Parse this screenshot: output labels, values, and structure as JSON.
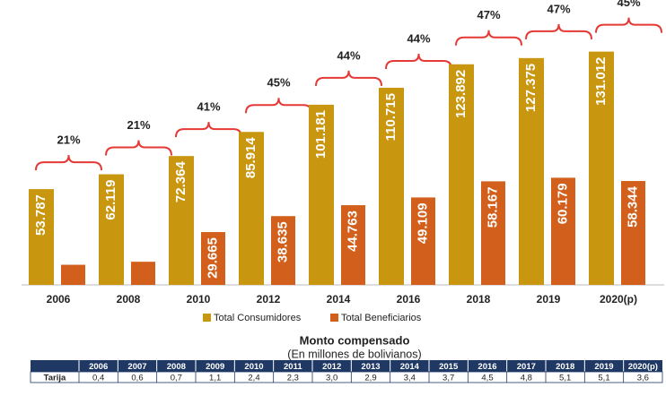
{
  "chart_data": {
    "type": "bar",
    "categories": [
      "2006",
      "2008",
      "2010",
      "2012",
      "2014",
      "2016",
      "2018",
      "2019",
      "2020(p)"
    ],
    "series": [
      {
        "name": "Total Consumidores",
        "color": "#c8960f",
        "values": [
          53787,
          62119,
          72364,
          85914,
          101181,
          110715,
          123892,
          127375,
          131012
        ],
        "value_labels": [
          "53.787",
          "62.119",
          "72.364",
          "85.914",
          "101.181",
          "110.715",
          "123.892",
          "127.375",
          "131.012"
        ]
      },
      {
        "name": "Total Beneficiarios",
        "color": "#d2601c",
        "values": [
          11300,
          13000,
          29665,
          38635,
          44763,
          49109,
          58167,
          60179,
          58344
        ],
        "value_labels": [
          null,
          null,
          "29.665",
          "38.635",
          "44.763",
          "49.109",
          "58.167",
          "60.179",
          "58.344"
        ]
      }
    ],
    "annotations": [
      "21%",
      "21%",
      "41%",
      "45%",
      "44%",
      "44%",
      "47%",
      "47%",
      "45%"
    ],
    "annotation_color": "#e53935",
    "ylim": [
      0,
      160000
    ],
    "legend": "bottom"
  },
  "table": {
    "title": "Monto compensado",
    "subtitle": "(En millones de bolivianos)",
    "columns": [
      "2006",
      "2007",
      "2008",
      "2009",
      "2010",
      "2011",
      "2012",
      "2013",
      "2014",
      "2015",
      "2016",
      "2017",
      "2018",
      "2019",
      "2020(p)"
    ],
    "rows": [
      {
        "label": "Tarija",
        "values": [
          "0,4",
          "0,6",
          "0,7",
          "1,1",
          "2,4",
          "2,3",
          "3,0",
          "2,9",
          "3,4",
          "3,7",
          "4,5",
          "4,8",
          "5,1",
          "5,1",
          "3,6"
        ]
      }
    ]
  }
}
